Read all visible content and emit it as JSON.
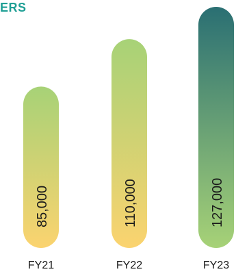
{
  "title": "ERS",
  "colors": {
    "title": "#1f9f95",
    "label_text": "#1a1a1a",
    "grad_warm_bottom": "#fbd36f",
    "grad_green": "#a7d277",
    "grad_dark_teal": "#2a6f73"
  },
  "chart_data": {
    "type": "bar",
    "title": "ERS",
    "categories": [
      "FY21",
      "FY22",
      "FY23"
    ],
    "values": [
      85000,
      110000,
      127000
    ],
    "value_labels": [
      "85,000",
      "110,000",
      "127,000"
    ],
    "xlabel": "",
    "ylabel": "",
    "ylim": [
      0,
      127000
    ],
    "grid": false,
    "legend": "none"
  }
}
